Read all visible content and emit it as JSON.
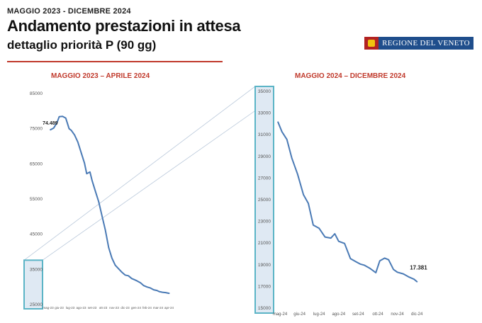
{
  "header": {
    "period_label": "MAGGIO 2023 - DICEMBRE 2024",
    "title": "Andamento prestazioni in attesa",
    "subtitle": "dettaglio priorità P (90 gg)",
    "logo_text": "REGIONE DEL VENETO",
    "accent_color": "#c0392b",
    "line_color": "#4a7ab5",
    "highlight_color": "#5bb4c6"
  },
  "chart_data": [
    {
      "type": "line",
      "title": "MAGGIO 2023 – APRILE 2024",
      "x_ticks": [
        "mag-23",
        "giu-23",
        "lug-23",
        "ago-23",
        "set-23",
        "ott-23",
        "nov-23",
        "dic-23",
        "gen-24",
        "feb-24",
        "mar-24",
        "apr-24"
      ],
      "y_ticks": [
        "85000",
        "75000",
        "65000",
        "55000",
        "45000",
        "35000",
        "25000"
      ],
      "ylim": [
        25000,
        85000
      ],
      "grid": false,
      "annotations": [
        {
          "text": "74.489",
          "x": 0.2,
          "y": 74489
        }
      ],
      "series": [
        {
          "x": [
            0.2,
            0.5,
            0.8,
            1.0,
            1.3,
            1.6,
            1.9,
            2.1,
            2.4,
            2.7,
            3.0,
            3.3,
            3.5,
            3.8,
            4.0,
            4.3,
            4.6,
            4.9,
            5.2,
            5.5,
            5.8,
            6.1,
            6.4,
            6.7,
            7.0,
            7.3,
            7.6,
            7.9,
            8.1,
            8.4,
            8.7,
            9.0,
            9.3,
            9.6,
            9.9,
            10.1,
            10.4,
            10.7,
            11.0
          ],
          "values": [
            74489,
            75000,
            76500,
            78200,
            78300,
            77800,
            74800,
            74300,
            73000,
            71000,
            68000,
            65000,
            62000,
            62500,
            60000,
            57000,
            54000,
            50000,
            46000,
            41000,
            38000,
            36000,
            35000,
            34000,
            33200,
            33000,
            32200,
            31800,
            31500,
            31000,
            30200,
            29800,
            29500,
            29000,
            28800,
            28500,
            28300,
            28200,
            28000
          ]
        }
      ]
    },
    {
      "type": "line",
      "title": "MAGGIO 2024 – DICEMBRE 2024",
      "x_ticks": [
        "mag-24",
        "giu-24",
        "lug-24",
        "ago-24",
        "set-24",
        "ott-24",
        "nov-24",
        "dic-24"
      ],
      "y_ticks": [
        "35000",
        "33000",
        "31000",
        "29000",
        "27000",
        "25000",
        "23000",
        "21000",
        "19000",
        "17000",
        "15000"
      ],
      "ylim": [
        15000,
        35000
      ],
      "grid": false,
      "annotations": [
        {
          "text": "17.381",
          "x": 7.0,
          "y": 17381
        }
      ],
      "series": [
        {
          "x": [
            -0.1,
            0.1,
            0.35,
            0.6,
            0.9,
            1.2,
            1.45,
            1.7,
            2.0,
            2.3,
            2.6,
            2.8,
            3.0,
            3.3,
            3.6,
            3.9,
            4.1,
            4.3,
            4.6,
            4.9,
            5.1,
            5.35,
            5.55,
            5.8,
            6.0,
            6.3,
            6.6,
            6.85,
            7.0
          ],
          "values": [
            32100,
            31200,
            30500,
            28800,
            27300,
            25400,
            24600,
            22600,
            22300,
            21500,
            21400,
            21800,
            21100,
            20900,
            19500,
            19200,
            19000,
            18900,
            18600,
            18200,
            19300,
            19550,
            19400,
            18500,
            18250,
            18100,
            17800,
            17600,
            17381
          ]
        }
      ]
    }
  ]
}
